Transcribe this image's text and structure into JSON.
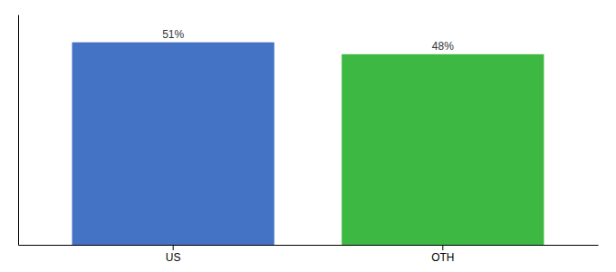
{
  "chart_data": {
    "type": "bar",
    "categories": [
      "US",
      "OTH"
    ],
    "values": [
      51,
      48
    ],
    "value_labels": [
      "51%",
      "48%"
    ],
    "data_labels": true,
    "colors": [
      "#4472c4",
      "#3cb843"
    ],
    "ylim": [
      0,
      58
    ],
    "tick_labels": "x"
  }
}
